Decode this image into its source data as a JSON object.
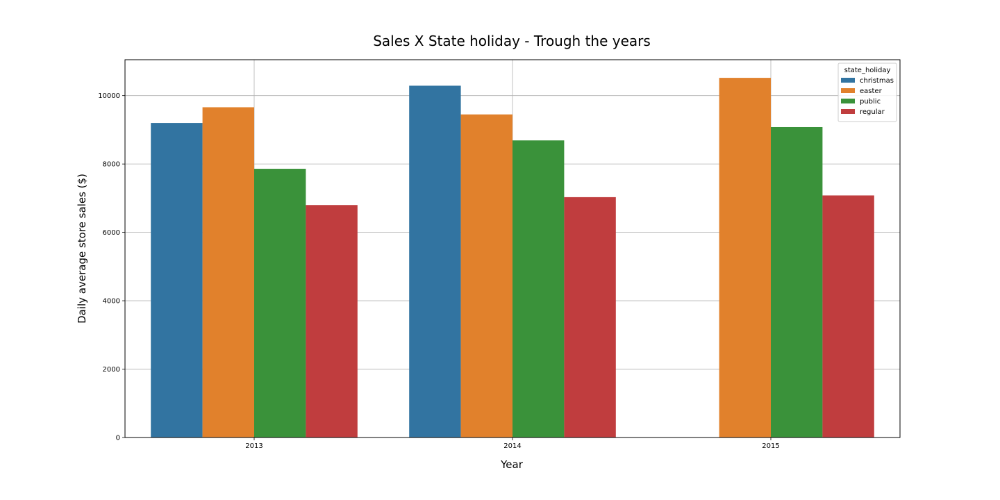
{
  "chart_data": {
    "type": "bar",
    "title": "Sales X State holiday - Trough the years",
    "xlabel": "Year",
    "ylabel": "Daily average store sales ($)",
    "categories": [
      "2013",
      "2014",
      "2015"
    ],
    "ylim": [
      0,
      11050
    ],
    "yticks": [
      0,
      2000,
      4000,
      6000,
      8000,
      10000
    ],
    "grid": true,
    "legend": {
      "title": "state_holiday",
      "placement": "top-right"
    },
    "series": [
      {
        "name": "christmas",
        "color": "#3274a1",
        "values": [
          9200,
          10290,
          null
        ]
      },
      {
        "name": "easter",
        "color": "#e1812c",
        "values": [
          9660,
          9450,
          10520
        ]
      },
      {
        "name": "public",
        "color": "#3a923a",
        "values": [
          7860,
          8690,
          9080
        ]
      },
      {
        "name": "regular",
        "color": "#c03d3e",
        "values": [
          6800,
          7030,
          7080
        ]
      }
    ]
  }
}
